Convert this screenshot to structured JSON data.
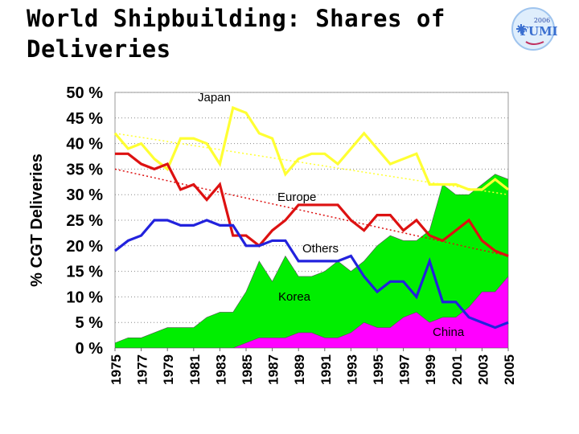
{
  "title_line1": "World Shipbuilding: Shares of",
  "title_line2": "Deliveries",
  "logo": {
    "year_text": "2006",
    "brand_text": "FUMI",
    "icon": "snowflake-globe-logo",
    "colors": [
      "#3a6fd0",
      "#9fc4ee",
      "#2a4aa8"
    ]
  },
  "chart_data": {
    "type": "area",
    "title": "World Shipbuilding: Shares of Deliveries",
    "xlabel": "",
    "ylabel": "% CGT Deliveries",
    "x": [
      1975,
      1976,
      1977,
      1978,
      1979,
      1980,
      1981,
      1982,
      1983,
      1984,
      1985,
      1986,
      1987,
      1988,
      1989,
      1990,
      1991,
      1992,
      1993,
      1994,
      1995,
      1996,
      1997,
      1998,
      1999,
      2000,
      2001,
      2002,
      2003,
      2004,
      2005
    ],
    "x_tick_labels": [
      "1975",
      "1977",
      "1979",
      "1981",
      "1983",
      "1985",
      "1987",
      "1989",
      "1991",
      "1993",
      "1995",
      "1997",
      "1999",
      "2001",
      "2003",
      "2005"
    ],
    "y_tick_labels": [
      "0 %",
      "5 %",
      "10 %",
      "15 %",
      "20 %",
      "25 %",
      "30 %",
      "35 %",
      "40 %",
      "45 %",
      "50 %"
    ],
    "ylim": [
      0,
      50
    ],
    "grid": "horizontal-dotted",
    "series": [
      {
        "name": "China",
        "kind": "area",
        "color": "#ff00ff",
        "values": [
          0,
          0,
          0,
          0,
          0,
          0,
          0,
          0,
          0,
          0,
          1,
          2,
          2,
          2,
          3,
          3,
          2,
          2,
          3,
          5,
          4,
          4,
          6,
          7,
          5,
          6,
          6,
          8,
          11,
          11,
          14
        ]
      },
      {
        "name": "Korea",
        "kind": "area",
        "color": "#00ee00",
        "values": [
          1,
          2,
          2,
          3,
          4,
          4,
          4,
          6,
          7,
          7,
          11,
          17,
          13,
          18,
          14,
          14,
          15,
          17,
          15,
          17,
          20,
          22,
          21,
          21,
          23,
          32,
          30,
          30,
          32,
          34,
          33
        ]
      },
      {
        "name": "Japan",
        "kind": "line",
        "color": "#ffff33",
        "values": [
          42,
          39,
          40,
          37,
          35,
          41,
          41,
          40,
          36,
          47,
          46,
          42,
          41,
          34,
          37,
          38,
          38,
          36,
          39,
          42,
          39,
          36,
          37,
          38,
          32,
          32,
          32,
          31,
          31,
          33,
          31
        ]
      },
      {
        "name": "Europe",
        "kind": "line",
        "color": "#dd1111",
        "values": [
          38,
          38,
          36,
          35,
          36,
          31,
          32,
          29,
          32,
          22,
          22,
          20,
          23,
          25,
          28,
          28,
          28,
          28,
          25,
          23,
          26,
          26,
          23,
          25,
          22,
          21,
          23,
          25,
          21,
          19,
          18
        ]
      },
      {
        "name": "Others",
        "kind": "line",
        "color": "#2222dd",
        "values": [
          19,
          21,
          22,
          25,
          25,
          24,
          24,
          25,
          24,
          24,
          20,
          20,
          21,
          21,
          17,
          17,
          17,
          17,
          18,
          14,
          11,
          13,
          13,
          10,
          17,
          9,
          9,
          6,
          5,
          4,
          5
        ]
      }
    ],
    "trend_lines": [
      {
        "of": "Japan",
        "color": "#ffff33",
        "from": 42,
        "to": 30
      },
      {
        "of": "Europe",
        "color": "#dd1111",
        "from": 35,
        "to": 18
      }
    ],
    "labels": {
      "japan": "Japan",
      "europe": "Europe",
      "others": "Others",
      "korea": "Korea",
      "china": "China"
    }
  }
}
